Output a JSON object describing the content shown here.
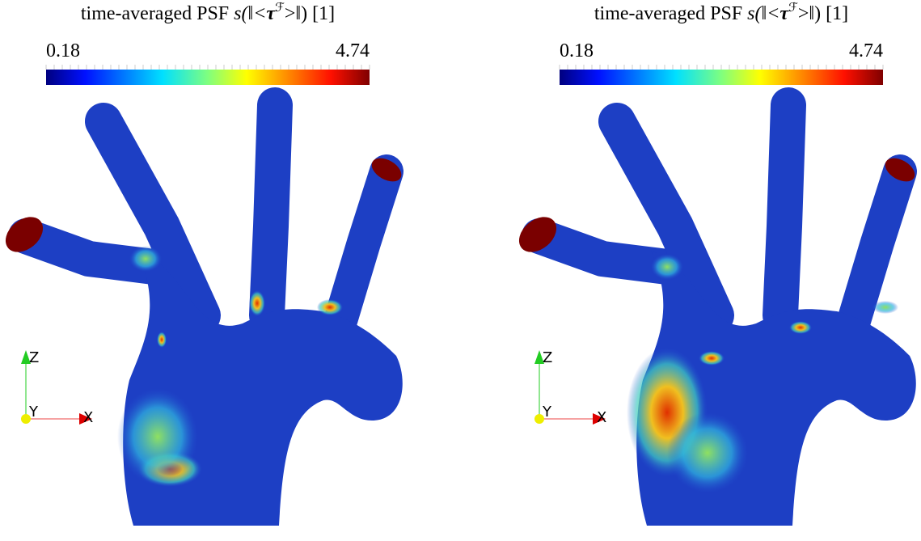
{
  "panels": [
    {
      "title": {
        "text": "time-averaged PSF ",
        "math": "s(‖<",
        "tau": "τ",
        "sup": "ℱ",
        "tail": ">‖) [1]"
      },
      "colorbar": {
        "min": 0.18,
        "max": 4.74
      },
      "axes": {
        "z": "Z",
        "y": "Y",
        "x": "X"
      }
    },
    {
      "title": {
        "text": "time-averaged PSF ",
        "math": "s(‖<",
        "tau": "τ",
        "sup": "ℱ",
        "tail": ">‖) [1]"
      },
      "colorbar": {
        "min": 0.18,
        "max": 4.74
      },
      "axes": {
        "z": "Z",
        "y": "Y",
        "x": "X"
      }
    }
  ]
}
